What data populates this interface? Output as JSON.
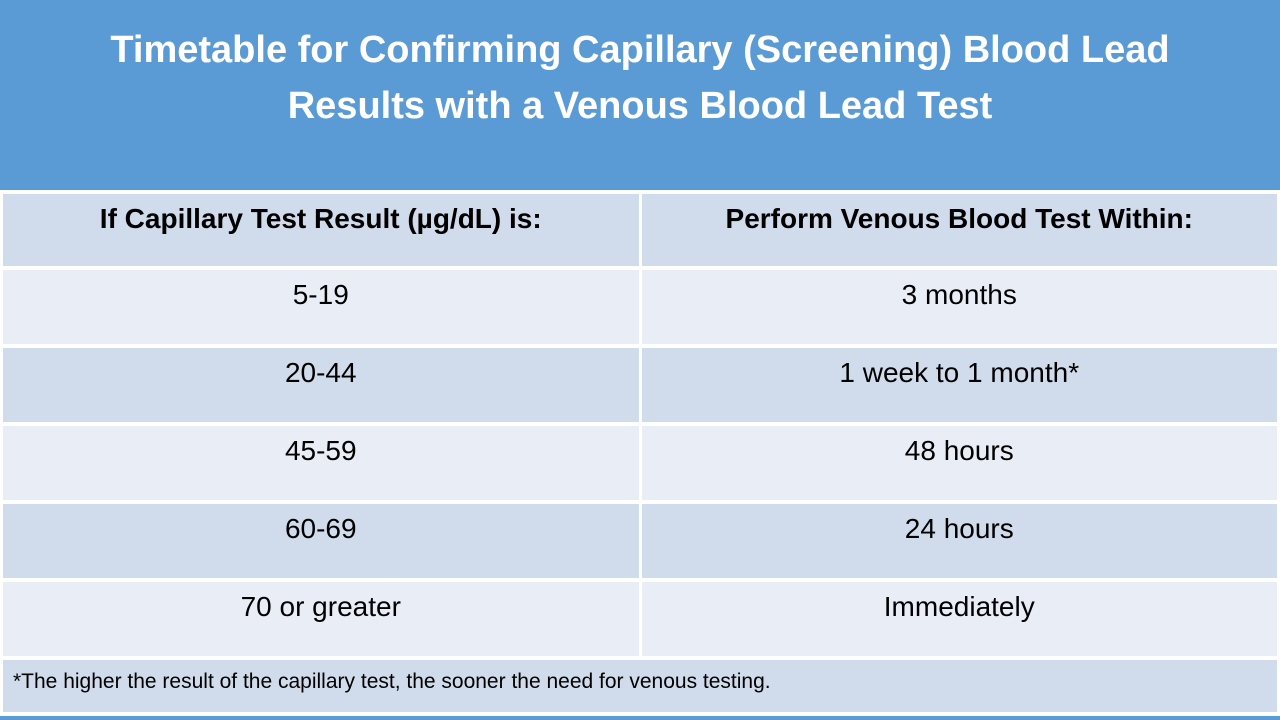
{
  "slide": {
    "title_lines": [
      "Timetable for Confirming Capillary (Screening) Blood Lead",
      "Results with a Venous Blood Lead Test"
    ]
  },
  "table": {
    "columns": [
      "If Capillary Test Result (µg/dL) is:",
      "Perform Venous Blood Test Within:"
    ],
    "rows": [
      {
        "capillary_result": "5-19",
        "venous_test_within": "3 months"
      },
      {
        "capillary_result": "20-44",
        "venous_test_within": "1 week to 1 month*"
      },
      {
        "capillary_result": "45-59",
        "venous_test_within": "48 hours"
      },
      {
        "capillary_result": "60-69",
        "venous_test_within": "24 hours"
      },
      {
        "capillary_result": "70 or greater",
        "venous_test_within": "Immediately"
      }
    ],
    "footnote": "*The higher the result of the capillary test, the sooner the need for venous testing."
  },
  "colors": {
    "slide_background": "#5b9bd5",
    "row_dark": "#d0dbeb",
    "row_light": "#e9eef6",
    "separator": "#ffffff",
    "title_text": "#ffffff",
    "body_text": "#000000"
  }
}
